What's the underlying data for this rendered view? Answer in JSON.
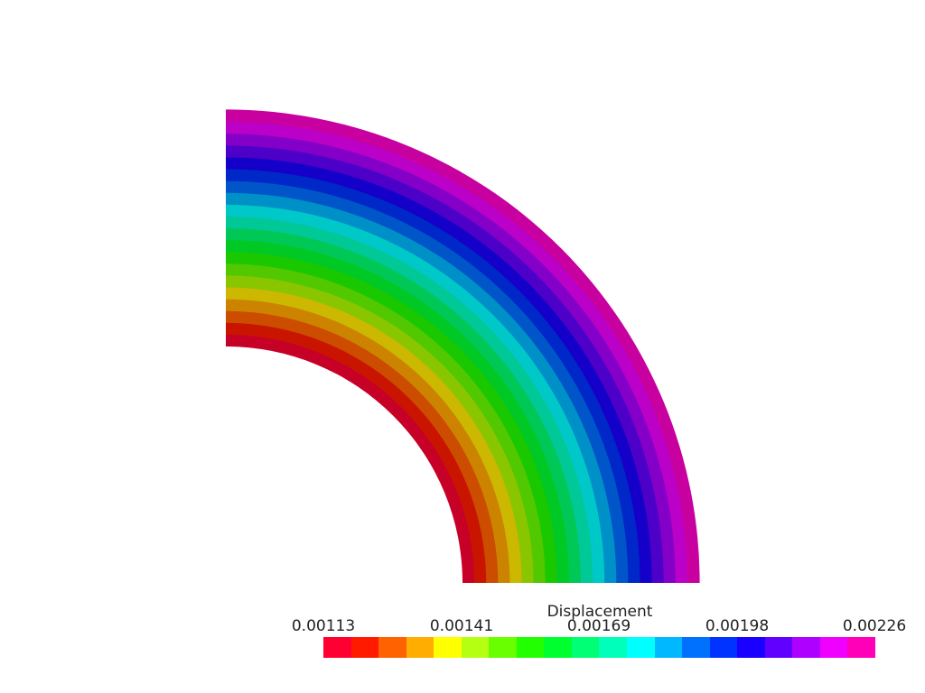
{
  "legend": {
    "title": "Displacement",
    "ticks": [
      "0.00113",
      "0.00141",
      "0.00169",
      "0.00198",
      "0.00226"
    ],
    "range": [
      0.00113,
      0.00226
    ],
    "colors": [
      "#ff0033",
      "#ff1a00",
      "#ff6200",
      "#ffad00",
      "#ffff00",
      "#b5ff13",
      "#6aff00",
      "#22ff00",
      "#00ff2e",
      "#00ff74",
      "#00ffbb",
      "#00ffff",
      "#00b8ff",
      "#0070ff",
      "#0033ff",
      "#1a00ff",
      "#6200ff",
      "#ad00ff",
      "#f000ff",
      "#ff00b8"
    ]
  },
  "field": {
    "band_colors": [
      "#c70027",
      "#c91500",
      "#cc4c00",
      "#cc8400",
      "#ccb800",
      "#8ac600",
      "#52c800",
      "#1ac800",
      "#00c824",
      "#00c856",
      "#00c896",
      "#00c8c8",
      "#0090c8",
      "#0056c8",
      "#0028c8",
      "#1400c8",
      "#4c00c8",
      "#8400c8",
      "#bb00c8",
      "#c800a0"
    ]
  }
}
